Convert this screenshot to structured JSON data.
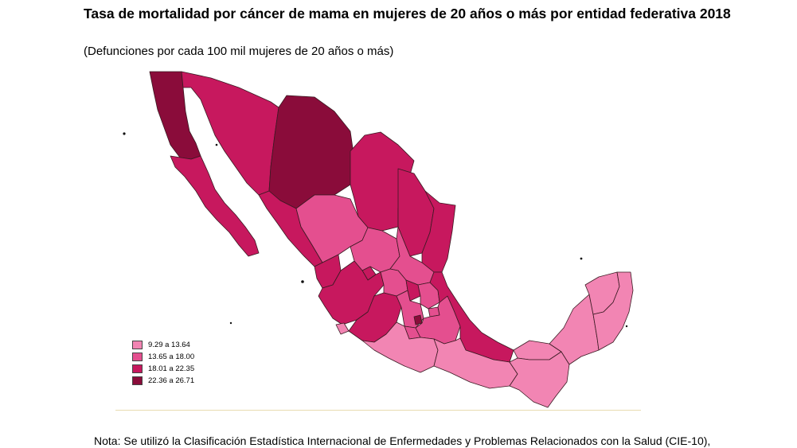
{
  "title": "Tasa de mortalidad por cáncer de mama en mujeres de 20 años o más por entidad federativa 2018",
  "subtitle": "(Defunciones por cada 100 mil mujeres de 20 años o más)",
  "legend": [
    {
      "label": "9.29 a 13.64",
      "color": "#f285b3"
    },
    {
      "label": "13.65 a 18.00",
      "color": "#e44f8f"
    },
    {
      "label": "18.01 a 22.35",
      "color": "#c7185e"
    },
    {
      "label": "22.36 a 26.71",
      "color": "#8a0c3a"
    }
  ],
  "note": "Nota: Se utilizó la Clasificación Estadística Internacional de Enfermedades y Problemas Relacionados con la Salud (CIE-10),"
}
